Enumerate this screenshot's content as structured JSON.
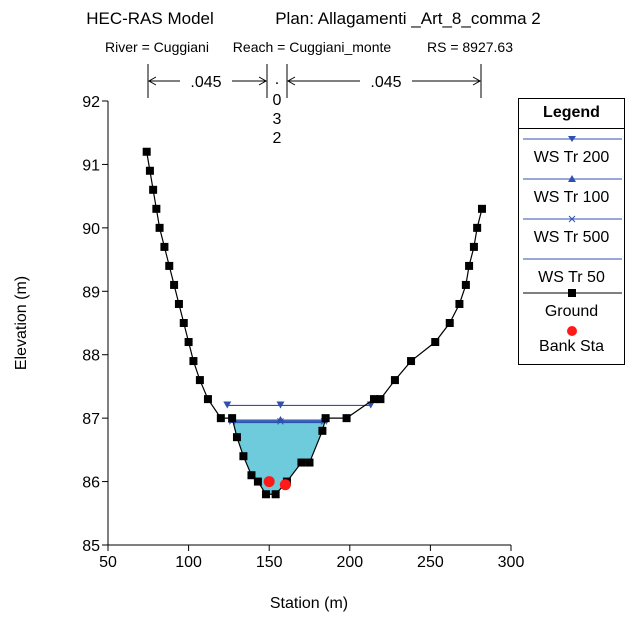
{
  "header": {
    "title_model": "HEC-RAS Model",
    "title_plan": "Plan: Allagamenti _Art_8_comma 2",
    "river": "River = Cuggiani",
    "reach": "Reach = Cuggiani_monte",
    "rs": "RS = 8927.63"
  },
  "mannings": {
    "left": ".045",
    "channel_chars": [
      ".",
      "0",
      "3",
      "2"
    ],
    "right": ".045"
  },
  "legend": {
    "title": "Legend",
    "items": [
      {
        "label": "WS Tr 200",
        "marker": "triangle-down",
        "color": "#3050b0"
      },
      {
        "label": "WS Tr 100",
        "marker": "triangle-up",
        "color": "#3050b0"
      },
      {
        "label": "WS Tr 500",
        "marker": "x",
        "color": "#3050b0"
      },
      {
        "label": "WS Tr 50",
        "marker": "none",
        "color": "#3050b0"
      },
      {
        "label": "Ground",
        "marker": "square",
        "color": "#000000"
      },
      {
        "label": "Bank Sta",
        "marker": "circle",
        "color": "#ff1a1a"
      }
    ]
  },
  "chart_data": {
    "type": "line",
    "xlabel": "Station (m)",
    "ylabel": "Elevation (m)",
    "xlim": [
      50,
      300
    ],
    "ylim": [
      85,
      92
    ],
    "xticks": [
      50,
      100,
      150,
      200,
      250,
      300
    ],
    "yticks": [
      85,
      86,
      87,
      88,
      89,
      90,
      91,
      92
    ],
    "water_fill_color": "#6dcbdb",
    "ground": {
      "name": "Ground",
      "x": [
        74,
        76,
        78,
        80,
        82,
        85,
        88,
        91,
        94,
        97,
        100,
        103,
        107,
        112,
        120,
        127,
        130,
        134,
        139,
        143,
        148,
        154,
        161,
        170,
        175,
        183,
        185,
        198,
        215,
        219,
        228,
        238,
        253,
        262,
        268,
        272,
        274,
        277,
        279,
        282
      ],
      "y": [
        91.2,
        90.9,
        90.6,
        90.3,
        90.0,
        89.7,
        89.4,
        89.1,
        88.8,
        88.5,
        88.2,
        87.9,
        87.6,
        87.3,
        87.0,
        87.0,
        86.7,
        86.4,
        86.1,
        86.0,
        85.8,
        85.8,
        86.0,
        86.3,
        86.3,
        86.8,
        87.0,
        87.0,
        87.3,
        87.3,
        87.6,
        87.9,
        88.2,
        88.5,
        88.8,
        89.1,
        89.4,
        89.7,
        90.0,
        90.3
      ]
    },
    "series": [
      {
        "name": "WS Tr 200",
        "elevation": 87.2,
        "x_left": 124,
        "x_right": 213,
        "marker_x": [
          124,
          157,
          213
        ]
      },
      {
        "name": "WS Tr 100",
        "elevation": 86.97,
        "x_left": 127,
        "x_right": 184,
        "marker_x": [
          127,
          157,
          184
        ]
      },
      {
        "name": "WS Tr 500",
        "elevation": 86.95,
        "x_left": 127,
        "x_right": 184,
        "marker_x": [
          127,
          157,
          184
        ]
      },
      {
        "name": "WS Tr 50",
        "elevation": 86.93,
        "x_left": 128,
        "x_right": 184,
        "marker_x": []
      }
    ],
    "bank_stations": {
      "name": "Bank Sta",
      "x": [
        150,
        160
      ],
      "y": [
        86.0,
        85.95
      ]
    },
    "manning_breaks_x": [
      149,
      157,
      162,
      281
    ]
  }
}
